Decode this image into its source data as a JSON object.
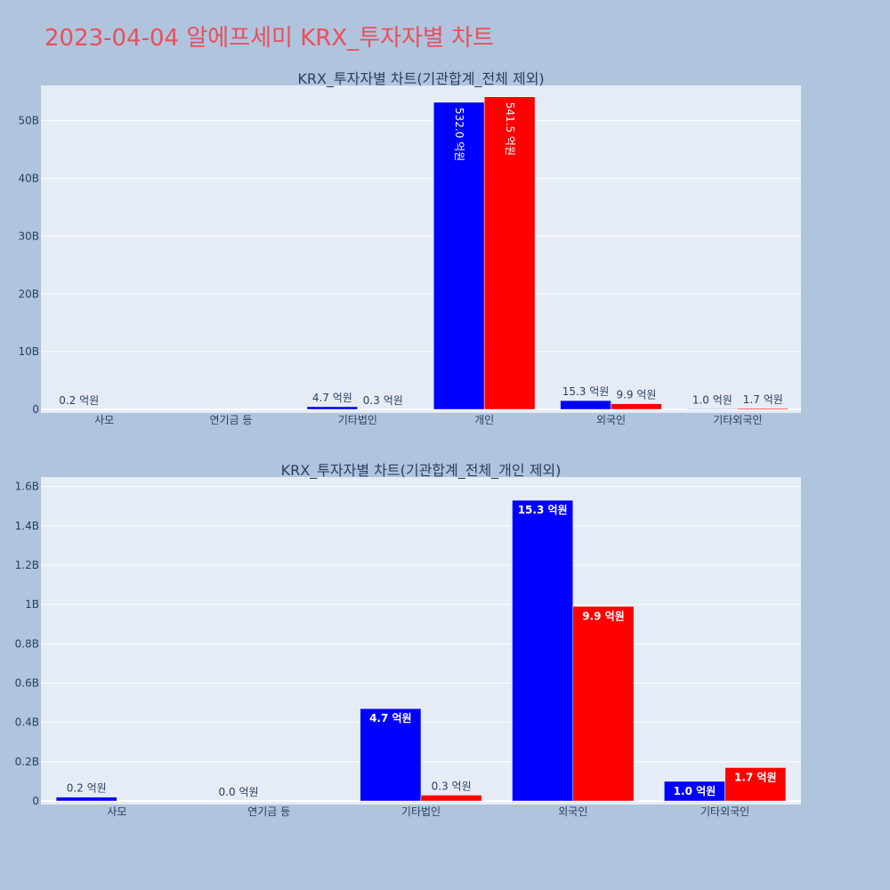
{
  "page_title": "2023-04-04 알에프세미 KRX_투자자별 차트",
  "colors": {
    "page_bg": "#b0c4de",
    "plot_bg": "#e5ecf6",
    "title": "#e8505b",
    "series_blue": "#0000ff",
    "series_red": "#ff0000",
    "text": "#2a3f5f"
  },
  "chart_data": [
    {
      "type": "bar",
      "title": "KRX_투자자별 차트(기관합계_전체 제외)",
      "categories": [
        "사모",
        "연기금 등",
        "기타법인",
        "개인",
        "외국인",
        "기타외국인"
      ],
      "series": [
        {
          "color": "#0000ff",
          "values": [
            0.02,
            null,
            0.47,
            53.2,
            1.53,
            0.1
          ],
          "labels": [
            "0.2 억원",
            "",
            "4.7 억원",
            "532.0 억원",
            "15.3 억원",
            "1.0 억원"
          ]
        },
        {
          "color": "#ff0000",
          "values": [
            null,
            null,
            0.03,
            54.15,
            0.99,
            0.17
          ],
          "labels": [
            "",
            "",
            "0.3 억원",
            "541.5 억원",
            "9.9 억원",
            "1.7 억원"
          ]
        }
      ],
      "yticks": [
        0,
        10,
        20,
        30,
        40,
        50
      ],
      "ytick_labels": [
        "0",
        "10B",
        "20B",
        "30B",
        "40B",
        "50B"
      ],
      "ylim": [
        0,
        55.5
      ],
      "grid": true,
      "legend": "none"
    },
    {
      "type": "bar",
      "title": "KRX_투자자별 차트(기관합계_전체_개인 제외)",
      "categories": [
        "사모",
        "연기금 등",
        "기타법인",
        "외국인",
        "기타외국인"
      ],
      "series": [
        {
          "color": "#0000ff",
          "values": [
            0.02,
            0.0,
            0.47,
            1.53,
            0.1
          ],
          "labels": [
            "0.2 억원",
            "0.0 억원",
            "4.7 억원",
            "15.3 억원",
            "1.0 억원"
          ]
        },
        {
          "color": "#ff0000",
          "values": [
            null,
            null,
            0.03,
            0.99,
            0.17
          ],
          "labels": [
            "",
            "",
            "0.3 억원",
            "9.9 억원",
            "1.7 억원"
          ]
        }
      ],
      "yticks": [
        0,
        0.2,
        0.4,
        0.6,
        0.8,
        1.0,
        1.2,
        1.4,
        1.6
      ],
      "ytick_labels": [
        "0",
        "0.2B",
        "0.4B",
        "0.6B",
        "0.8B",
        "1B",
        "1.2B",
        "1.4B",
        "1.6B"
      ],
      "ylim": [
        0,
        1.63
      ],
      "grid": true,
      "legend": "none"
    }
  ]
}
